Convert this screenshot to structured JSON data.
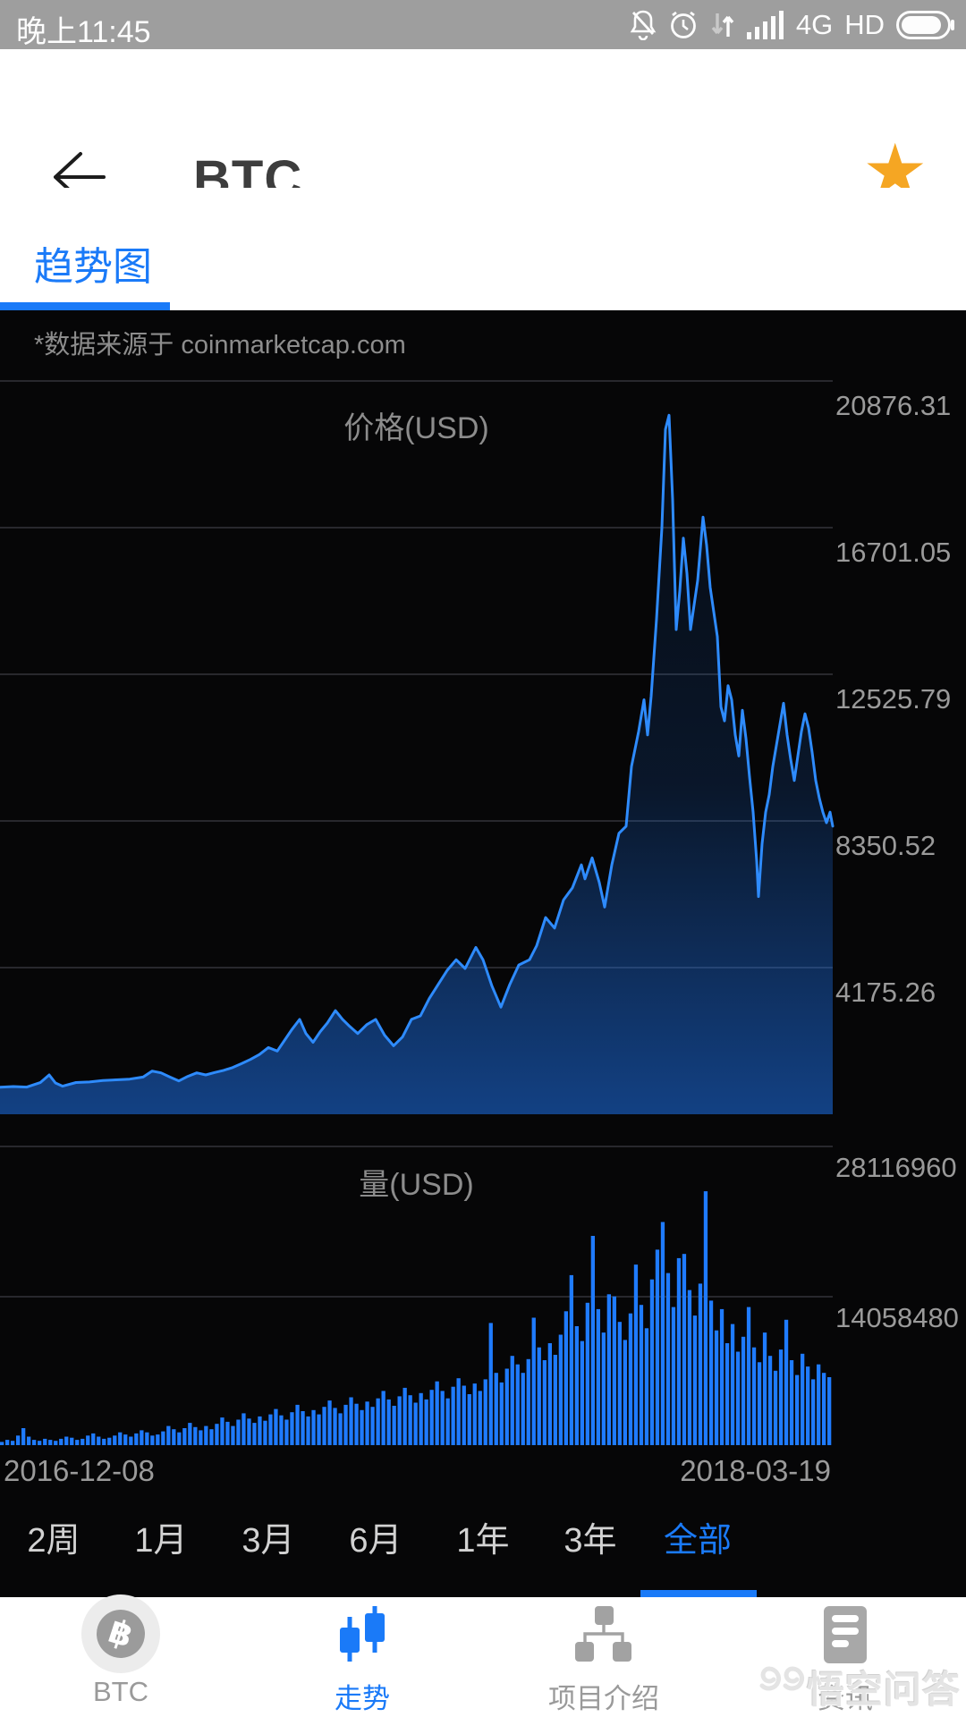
{
  "status_bar": {
    "time": "晚上11:45",
    "network": "4G",
    "hd": "HD"
  },
  "header": {
    "title": "BTC"
  },
  "tabs": {
    "items": [
      {
        "label": "趋势图",
        "active": true
      }
    ]
  },
  "chart": {
    "source_note": "*数据来源于 coinmarketcap.com",
    "price_title": "价格(USD)",
    "volume_title": "量(USD)",
    "price_axis_labels": [
      "20876.31",
      "16701.05",
      "12525.79",
      "8350.52",
      "4175.26"
    ],
    "volume_axis_labels": [
      "28116960",
      "14058480"
    ],
    "x_axis": {
      "start": "2016-12-08",
      "end": "2018-03-19"
    }
  },
  "range_selector": {
    "options": [
      "2周",
      "1月",
      "3月",
      "6月",
      "1年",
      "3年",
      "全部"
    ],
    "active_index": 6
  },
  "bottom_nav": {
    "items": [
      {
        "label": "BTC",
        "active": false
      },
      {
        "label": "走势",
        "active": true
      },
      {
        "label": "项目介绍",
        "active": false
      },
      {
        "label": "资讯",
        "active": false
      }
    ]
  },
  "watermark": {
    "text": "悟空问答"
  },
  "colors": {
    "accent_blue": "#1a7af8",
    "line_blue": "#2e8bfd",
    "bar_blue": "#1f7bff",
    "panel_bg": "#060607",
    "grid": "#3e3e44",
    "axis_text": "#9a9a9a",
    "star_orange": "#f5a623",
    "statusbar_bg": "#9e9e9e"
  },
  "chart_data": [
    {
      "type": "line",
      "title": "价格(USD)",
      "x_range": [
        "2016-12-08",
        "2018-03-19"
      ],
      "ylim": [
        0,
        20876.31
      ],
      "yticks": [
        20876.31,
        16701.05,
        12525.79,
        8350.52,
        4175.26
      ],
      "grid": true,
      "series": [
        {
          "name": "BTC price (USD)",
          "x_unit": "plot-px (0-931, ~2px per day)",
          "points": [
            [
              0,
              770
            ],
            [
              15,
              790
            ],
            [
              30,
              775
            ],
            [
              45,
              900
            ],
            [
              55,
              1120
            ],
            [
              62,
              890
            ],
            [
              70,
              800
            ],
            [
              85,
              905
            ],
            [
              100,
              920
            ],
            [
              115,
              960
            ],
            [
              130,
              980
            ],
            [
              145,
              1000
            ],
            [
              160,
              1060
            ],
            [
              170,
              1230
            ],
            [
              180,
              1180
            ],
            [
              190,
              1060
            ],
            [
              200,
              950
            ],
            [
              210,
              1080
            ],
            [
              220,
              1180
            ],
            [
              230,
              1120
            ],
            [
              240,
              1190
            ],
            [
              250,
              1250
            ],
            [
              260,
              1330
            ],
            [
              270,
              1440
            ],
            [
              280,
              1560
            ],
            [
              290,
              1700
            ],
            [
              300,
              1900
            ],
            [
              310,
              1800
            ],
            [
              318,
              2100
            ],
            [
              326,
              2400
            ],
            [
              335,
              2700
            ],
            [
              342,
              2300
            ],
            [
              350,
              2050
            ],
            [
              358,
              2350
            ],
            [
              366,
              2600
            ],
            [
              375,
              2950
            ],
            [
              383,
              2700
            ],
            [
              391,
              2500
            ],
            [
              400,
              2300
            ],
            [
              410,
              2550
            ],
            [
              420,
              2700
            ],
            [
              430,
              2250
            ],
            [
              440,
              1950
            ],
            [
              450,
              2200
            ],
            [
              460,
              2700
            ],
            [
              470,
              2800
            ],
            [
              480,
              3300
            ],
            [
              490,
              3700
            ],
            [
              500,
              4100
            ],
            [
              510,
              4400
            ],
            [
              520,
              4150
            ],
            [
              532,
              4750
            ],
            [
              540,
              4400
            ],
            [
              550,
              3650
            ],
            [
              560,
              3050
            ],
            [
              570,
              3700
            ],
            [
              580,
              4250
            ],
            [
              592,
              4400
            ],
            [
              600,
              4800
            ],
            [
              610,
              5600
            ],
            [
              620,
              5300
            ],
            [
              630,
              6100
            ],
            [
              640,
              6450
            ],
            [
              650,
              7100
            ],
            [
              654,
              6700
            ],
            [
              662,
              7300
            ],
            [
              670,
              6600
            ],
            [
              676,
              5900
            ],
            [
              684,
              7100
            ],
            [
              692,
              8000
            ],
            [
              700,
              8200
            ],
            [
              706,
              9900
            ],
            [
              714,
              10900
            ],
            [
              720,
              11800
            ],
            [
              724,
              10800
            ],
            [
              728,
              11900
            ],
            [
              734,
              14100
            ],
            [
              740,
              16700
            ],
            [
              744,
              19500
            ],
            [
              748,
              19900
            ],
            [
              752,
              17500
            ],
            [
              756,
              13800
            ],
            [
              760,
              14900
            ],
            [
              764,
              16400
            ],
            [
              768,
              15400
            ],
            [
              772,
              13800
            ],
            [
              776,
              14500
            ],
            [
              780,
              15200
            ],
            [
              786,
              17000
            ],
            [
              790,
              16200
            ],
            [
              794,
              15000
            ],
            [
              798,
              14300
            ],
            [
              802,
              13600
            ],
            [
              806,
              11600
            ],
            [
              810,
              11200
            ],
            [
              814,
              12200
            ],
            [
              818,
              11800
            ],
            [
              822,
              10800
            ],
            [
              826,
              10200
            ],
            [
              830,
              11500
            ],
            [
              834,
              10700
            ],
            [
              838,
              9600
            ],
            [
              842,
              8600
            ],
            [
              846,
              7200
            ],
            [
              848,
              6200
            ],
            [
              852,
              7700
            ],
            [
              856,
              8600
            ],
            [
              860,
              9100
            ],
            [
              864,
              9900
            ],
            [
              868,
              10500
            ],
            [
              872,
              11100
            ],
            [
              876,
              11700
            ],
            [
              880,
              10800
            ],
            [
              884,
              10100
            ],
            [
              888,
              9500
            ],
            [
              892,
              10200
            ],
            [
              896,
              10900
            ],
            [
              900,
              11400
            ],
            [
              904,
              11000
            ],
            [
              908,
              10300
            ],
            [
              912,
              9500
            ],
            [
              916,
              9000
            ],
            [
              920,
              8600
            ],
            [
              924,
              8300
            ],
            [
              928,
              8600
            ],
            [
              931,
              8200
            ]
          ]
        }
      ]
    },
    {
      "type": "bar",
      "title": "量(USD)",
      "x_range": [
        "2016-12-08",
        "2018-03-19"
      ],
      "ylim": [
        0,
        28116960
      ],
      "yticks": [
        28116960,
        14058480
      ],
      "grid": true,
      "values": [
        300000,
        500000,
        400000,
        900000,
        1600000,
        800000,
        500000,
        400000,
        600000,
        500000,
        400000,
        600000,
        800000,
        700000,
        500000,
        600000,
        900000,
        1100000,
        800000,
        600000,
        700000,
        900000,
        1200000,
        1000000,
        800000,
        1100000,
        1400000,
        1200000,
        900000,
        1000000,
        1300000,
        1800000,
        1500000,
        1200000,
        1600000,
        2100000,
        1700000,
        1400000,
        1800000,
        1500000,
        2000000,
        2600000,
        2200000,
        1800000,
        2400000,
        3000000,
        2500000,
        2100000,
        2700000,
        2300000,
        2900000,
        3400000,
        2800000,
        2400000,
        3100000,
        3800000,
        3200000,
        2700000,
        3300000,
        2900000,
        3600000,
        4200000,
        3500000,
        3000000,
        3800000,
        4500000,
        3900000,
        3300000,
        4100000,
        3600000,
        4400000,
        5100000,
        4300000,
        3700000,
        4600000,
        5400000,
        4700000,
        4000000,
        4900000,
        4300000,
        5200000,
        6000000,
        5100000,
        4400000,
        5500000,
        6300000,
        5600000,
        4800000,
        5800000,
        5100000,
        6200000,
        11500000,
        6800000,
        5900000,
        7200000,
        8400000,
        7600000,
        6800000,
        8100000,
        12000000,
        9200000,
        8000000,
        9600000,
        8500000,
        10400000,
        12600000,
        16000000,
        11200000,
        9800000,
        13400000,
        19700000,
        12800000,
        10600000,
        14200000,
        14000000,
        11600000,
        9900000,
        12400000,
        17000000,
        13200000,
        11000000,
        15600000,
        18400000,
        21000000,
        16200000,
        13000000,
        17600000,
        18000000,
        14600000,
        12200000,
        15200000,
        23900000,
        13600000,
        10800000,
        12800000,
        9600000,
        11400000,
        8800000,
        10200000,
        13000000,
        9200000,
        7800000,
        10600000,
        8400000,
        7000000,
        9000000,
        11800000,
        8000000,
        6600000,
        8600000,
        7400000,
        6200000,
        7600000,
        6800000,
        6400000
      ]
    }
  ]
}
